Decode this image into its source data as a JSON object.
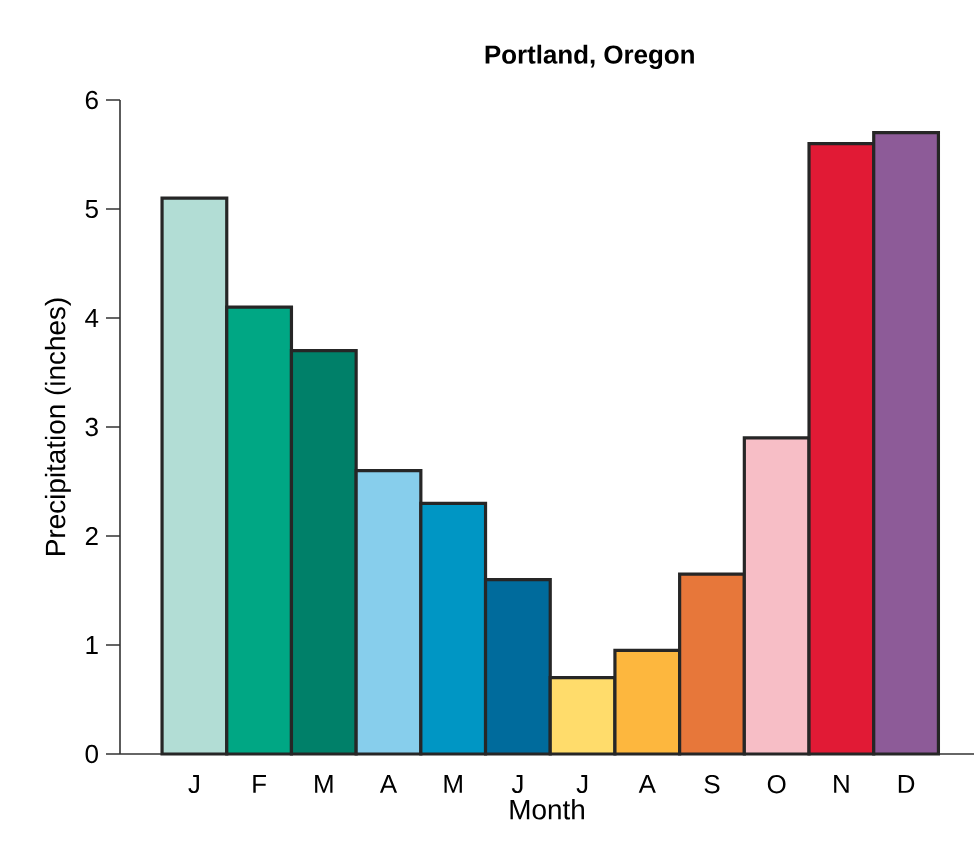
{
  "chart_data": {
    "type": "bar",
    "title": "Portland, Oregon",
    "xlabel": "Month",
    "ylabel": "Precipitation (inches)",
    "categories": [
      "J",
      "F",
      "M",
      "A",
      "M",
      "J",
      "J",
      "A",
      "S",
      "O",
      "N",
      "D"
    ],
    "values": [
      5.1,
      4.1,
      3.7,
      2.6,
      2.3,
      1.6,
      0.7,
      0.95,
      1.65,
      2.9,
      5.6,
      5.7
    ],
    "colors": [
      "#b2ddd5",
      "#00a784",
      "#008069",
      "#87ceec",
      "#0096c4",
      "#006b9c",
      "#ffdc6b",
      "#fdb73e",
      "#e7773a",
      "#f7bec6",
      "#e11a35",
      "#8d5b98"
    ],
    "ylim": [
      0,
      6
    ],
    "yticks": [
      0,
      1,
      2,
      3,
      4,
      5,
      6
    ],
    "grid": false
  }
}
